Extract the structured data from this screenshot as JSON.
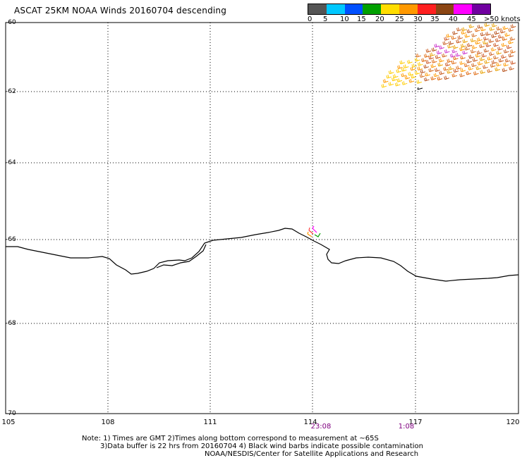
{
  "title": "ASCAT 25KM NOAA Winds 20160704 descending",
  "legend": {
    "labels": [
      "0",
      "5",
      "10",
      "15",
      "20",
      "25",
      "30",
      "35",
      "40",
      "45",
      ">50 knots"
    ],
    "colors": [
      "#555555",
      "#00c8ff",
      "#0050ff",
      "#00a000",
      "#ffdd00",
      "#ff9900",
      "#ff2020",
      "#8b4513",
      "#ff00ff",
      "#7000a0"
    ]
  },
  "map": {
    "lat_ticks": [
      "-60",
      "-62",
      "-64",
      "-66",
      "-68",
      "-70"
    ],
    "lon_ticks": [
      "105",
      "108",
      "111",
      "114",
      "117",
      "120"
    ],
    "times": [
      "23:08",
      "1:08"
    ]
  },
  "notes": {
    "line1": "Note: 1) Times are GMT 2)Times along bottom correspond to measurement at ~65S",
    "line2": "3)Data buffer is 22 hrs from 20160704 4) Black wind barbs indicate possible contamination",
    "line3": "NOAA/NESDIS/Center for Satellite Applications and Research"
  }
}
